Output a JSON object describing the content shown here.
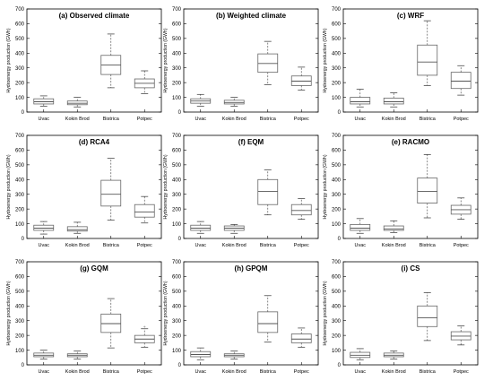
{
  "chart_data": [
    {
      "type": "box",
      "title": "(a) Observed climate",
      "ylabel": "Hydroenergy production (GWh)",
      "categories": [
        "Uvac",
        "Kokin Brod",
        "Bistrica",
        "Potpec"
      ],
      "ylim": [
        0,
        700
      ],
      "yticks": [
        0,
        100,
        200,
        300,
        400,
        500,
        600,
        700
      ],
      "boxes": [
        {
          "min": 40,
          "q1": 55,
          "median": 70,
          "q3": 90,
          "max": 110,
          "outliers": []
        },
        {
          "min": 35,
          "q1": 50,
          "median": 60,
          "q3": 75,
          "max": 100,
          "outliers": []
        },
        {
          "min": 165,
          "q1": 255,
          "median": 320,
          "q3": 385,
          "max": 530,
          "outliers": []
        },
        {
          "min": 125,
          "q1": 165,
          "median": 195,
          "q3": 225,
          "max": 280,
          "outliers": []
        }
      ]
    },
    {
      "type": "box",
      "title": "(b) Weighted climate",
      "ylabel": "Hydroenergy production (GWh)",
      "categories": [
        "Uvac",
        "Kokin Brod",
        "Bistrica",
        "Potpec"
      ],
      "ylim": [
        0,
        700
      ],
      "yticks": [
        0,
        100,
        200,
        300,
        400,
        500,
        600,
        700
      ],
      "boxes": [
        {
          "min": 40,
          "q1": 60,
          "median": 75,
          "q3": 90,
          "max": 120,
          "outliers": []
        },
        {
          "min": 40,
          "q1": 55,
          "median": 65,
          "q3": 80,
          "max": 100,
          "outliers": []
        },
        {
          "min": 185,
          "q1": 270,
          "median": 330,
          "q3": 395,
          "max": 480,
          "outliers": []
        },
        {
          "min": 150,
          "q1": 180,
          "median": 210,
          "q3": 245,
          "max": 305,
          "outliers": []
        }
      ]
    },
    {
      "type": "box",
      "title": "(c) WRF",
      "ylabel": "Hydroenergy production (GWh)",
      "categories": [
        "Uvac",
        "Kokin Brod",
        "Bistrica",
        "Potpec"
      ],
      "ylim": [
        0,
        700
      ],
      "yticks": [
        0,
        100,
        200,
        300,
        400,
        500,
        600,
        700
      ],
      "boxes": [
        {
          "min": 35,
          "q1": 55,
          "median": 70,
          "q3": 100,
          "max": 155,
          "outliers": []
        },
        {
          "min": 35,
          "q1": 55,
          "median": 70,
          "q3": 95,
          "max": 130,
          "outliers": []
        },
        {
          "min": 180,
          "q1": 250,
          "median": 340,
          "q3": 455,
          "max": 620,
          "outliers": []
        },
        {
          "min": 115,
          "q1": 160,
          "median": 210,
          "q3": 270,
          "max": 315,
          "outliers": []
        }
      ]
    },
    {
      "type": "box",
      "title": "(d) RCA4",
      "ylabel": "Hydroenergy production (GWh)",
      "categories": [
        "Uvac",
        "Kokin Brod",
        "Bistrica",
        "Potpec"
      ],
      "ylim": [
        0,
        700
      ],
      "yticks": [
        0,
        100,
        200,
        300,
        400,
        500,
        600,
        700
      ],
      "boxes": [
        {
          "min": 30,
          "q1": 55,
          "median": 70,
          "q3": 90,
          "max": 115,
          "outliers": []
        },
        {
          "min": 35,
          "q1": 50,
          "median": 60,
          "q3": 80,
          "max": 110,
          "outliers": []
        },
        {
          "min": 125,
          "q1": 220,
          "median": 300,
          "q3": 395,
          "max": 545,
          "outliers": []
        },
        {
          "min": 105,
          "q1": 145,
          "median": 180,
          "q3": 230,
          "max": 285,
          "outliers": []
        }
      ]
    },
    {
      "type": "box",
      "title": "(f) EQM",
      "ylabel": "Hydroenergy production (GWh)",
      "categories": [
        "Uvac",
        "Kokin Brod",
        "Bistrica",
        "Potpec"
      ],
      "ylim": [
        0,
        700
      ],
      "yticks": [
        0,
        100,
        200,
        300,
        400,
        500,
        600,
        700
      ],
      "boxes": [
        {
          "min": 35,
          "q1": 55,
          "median": 70,
          "q3": 90,
          "max": 115,
          "outliers": []
        },
        {
          "min": 35,
          "q1": 55,
          "median": 70,
          "q3": 85,
          "max": 95,
          "outliers": []
        },
        {
          "min": 160,
          "q1": 230,
          "median": 320,
          "q3": 400,
          "max": 465,
          "outliers": []
        },
        {
          "min": 130,
          "q1": 160,
          "median": 190,
          "q3": 230,
          "max": 270,
          "outliers": []
        }
      ]
    },
    {
      "type": "box",
      "title": "(e) RACMO",
      "ylabel": "Hydroenergy production (GWh)",
      "categories": [
        "Uvac",
        "Kokin Brod",
        "Bistrica",
        "Potpec"
      ],
      "ylim": [
        0,
        700
      ],
      "yticks": [
        0,
        100,
        200,
        300,
        400,
        500,
        600,
        700
      ],
      "boxes": [
        {
          "min": 35,
          "q1": 55,
          "median": 70,
          "q3": 95,
          "max": 135,
          "outliers": []
        },
        {
          "min": 40,
          "q1": 55,
          "median": 65,
          "q3": 85,
          "max": 120,
          "outliers": []
        },
        {
          "min": 140,
          "q1": 240,
          "median": 320,
          "q3": 410,
          "max": 570,
          "outliers": []
        },
        {
          "min": 130,
          "q1": 165,
          "median": 195,
          "q3": 225,
          "max": 275,
          "outliers": []
        }
      ]
    },
    {
      "type": "box",
      "title": "(g) GQM",
      "ylabel": "Hydroenergy production (GWh)",
      "categories": [
        "Uvac",
        "Kokin Brod",
        "Bistrica",
        "Potpec"
      ],
      "ylim": [
        0,
        700
      ],
      "yticks": [
        0,
        100,
        200,
        300,
        400,
        500,
        600,
        700
      ],
      "boxes": [
        {
          "min": 40,
          "q1": 55,
          "median": 65,
          "q3": 80,
          "max": 100,
          "outliers": []
        },
        {
          "min": 40,
          "q1": 55,
          "median": 65,
          "q3": 75,
          "max": 95,
          "outliers": []
        },
        {
          "min": 115,
          "q1": 220,
          "median": 280,
          "q3": 345,
          "max": 450,
          "outliers": []
        },
        {
          "min": 120,
          "q1": 150,
          "median": 175,
          "q3": 200,
          "max": 245,
          "outliers": [
            260
          ]
        }
      ]
    },
    {
      "type": "box",
      "title": "(h) GPQM",
      "ylabel": "Hydroenergy production (GWh)",
      "categories": [
        "Uvac",
        "Kokin Brod",
        "Bistrica",
        "Potpec"
      ],
      "ylim": [
        0,
        700
      ],
      "yticks": [
        0,
        100,
        200,
        300,
        400,
        500,
        600,
        700
      ],
      "boxes": [
        {
          "min": 35,
          "q1": 55,
          "median": 70,
          "q3": 90,
          "max": 115,
          "outliers": []
        },
        {
          "min": 40,
          "q1": 55,
          "median": 65,
          "q3": 75,
          "max": 95,
          "outliers": []
        },
        {
          "min": 155,
          "q1": 220,
          "median": 280,
          "q3": 360,
          "max": 470,
          "outliers": []
        },
        {
          "min": 120,
          "q1": 150,
          "median": 175,
          "q3": 210,
          "max": 250,
          "outliers": []
        }
      ]
    },
    {
      "type": "box",
      "title": "(i) CS",
      "ylabel": "Hydroenergy production (GWh)",
      "categories": [
        "Uvac",
        "Kokin Brod",
        "Bistrica",
        "Potpec"
      ],
      "ylim": [
        0,
        700
      ],
      "yticks": [
        0,
        100,
        200,
        300,
        400,
        500,
        600,
        700
      ],
      "boxes": [
        {
          "min": 35,
          "q1": 50,
          "median": 65,
          "q3": 85,
          "max": 110,
          "outliers": []
        },
        {
          "min": 40,
          "q1": 55,
          "median": 65,
          "q3": 80,
          "max": 95,
          "outliers": []
        },
        {
          "min": 165,
          "q1": 260,
          "median": 320,
          "q3": 400,
          "max": 490,
          "outliers": []
        },
        {
          "min": 135,
          "q1": 170,
          "median": 195,
          "q3": 225,
          "max": 265,
          "outliers": []
        }
      ]
    }
  ]
}
